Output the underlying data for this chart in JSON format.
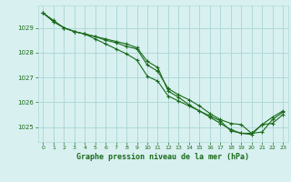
{
  "title": "Graphe pression niveau de la mer (hPa)",
  "background_color": "#d8f0f0",
  "grid_color": "#b0d8d8",
  "line_color": "#1a6b1a",
  "xlim": [
    -0.5,
    23.5
  ],
  "ylim": [
    1024.4,
    1029.9
  ],
  "yticks": [
    1025,
    1026,
    1027,
    1028,
    1029
  ],
  "xticks": [
    0,
    1,
    2,
    3,
    4,
    5,
    6,
    7,
    8,
    9,
    10,
    11,
    12,
    13,
    14,
    15,
    16,
    17,
    18,
    19,
    20,
    21,
    22,
    23
  ],
  "series": [
    [
      1029.6,
      1029.3,
      1029.0,
      1028.85,
      1028.75,
      1028.55,
      1028.35,
      1028.15,
      1027.95,
      1027.7,
      1027.05,
      1026.85,
      1026.25,
      1026.05,
      1025.85,
      1025.65,
      1025.45,
      1025.25,
      1024.85,
      1024.75,
      1024.75,
      1025.1,
      1025.4,
      1025.65
    ],
    [
      1029.6,
      1029.25,
      1029.0,
      1028.85,
      1028.75,
      1028.65,
      1028.55,
      1028.45,
      1028.35,
      1028.2,
      1027.65,
      1027.4,
      1026.45,
      1026.2,
      1025.9,
      1025.65,
      1025.4,
      1025.15,
      1024.9,
      1024.75,
      1024.7,
      1025.1,
      1025.15,
      1025.5
    ],
    [
      1029.6,
      1029.25,
      1029.0,
      1028.85,
      1028.75,
      1028.65,
      1028.5,
      1028.4,
      1028.25,
      1028.15,
      1027.5,
      1027.25,
      1026.55,
      1026.3,
      1026.1,
      1025.85,
      1025.55,
      1025.3,
      1025.15,
      1025.1,
      1024.75,
      1024.8,
      1025.3,
      1025.6
    ]
  ]
}
